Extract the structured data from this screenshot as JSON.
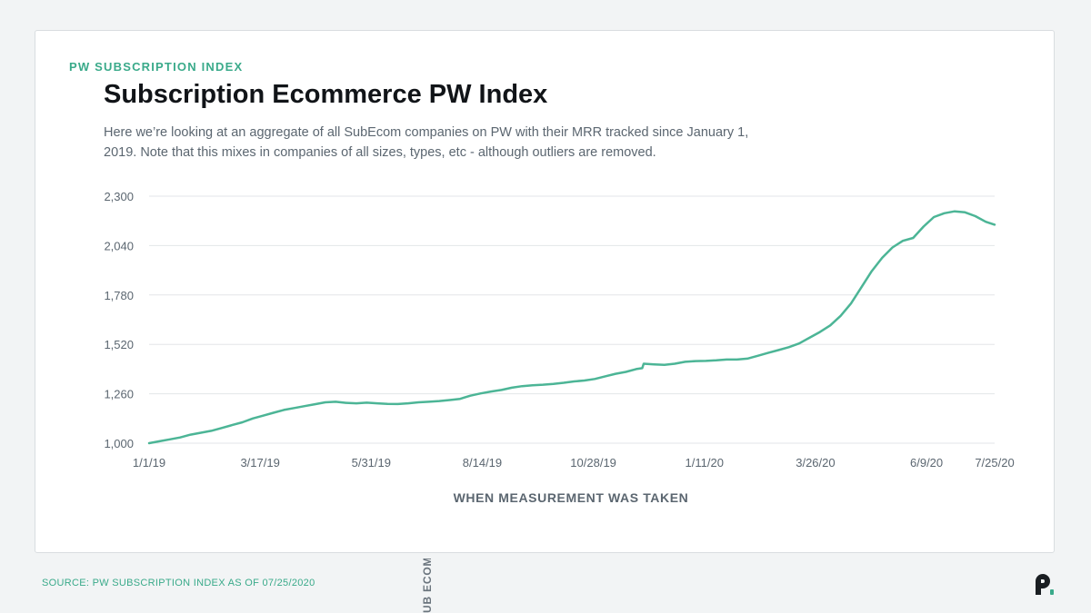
{
  "header": {
    "eyebrow": "PW SUBSCRIPTION INDEX",
    "title": "Subscription Ecommerce PW Index",
    "subtitle": "Here we’re looking at an aggregate of all SubEcom companies on PW with their MRR tracked since January 1, 2019. Note that this mixes in companies of all sizes, types, etc - although outliers are removed."
  },
  "footer": {
    "source": "SOURCE: PW SUBSCRIPTION INDEX AS OF 07/25/2020",
    "side_tag": "UB ECOM",
    "logo_icon": "pw-logo-icon"
  },
  "colors": {
    "line": "#4cb596",
    "accent": "#3aaa8a",
    "grid": "#e3e6e8",
    "text": "#5b6670"
  },
  "chart_data": {
    "type": "line",
    "title": "",
    "xlabel": "WHEN MEASUREMENT WAS TAKEN",
    "ylabel": "",
    "ylim": [
      1000,
      2300
    ],
    "y_ticks": [
      1000,
      1260,
      1520,
      1780,
      2040,
      2300
    ],
    "y_tick_labels": [
      "1,000",
      "1,260",
      "1,520",
      "1,780",
      "2,040",
      "2,300"
    ],
    "x_range": [
      "2019-01-01",
      "2020-07-25"
    ],
    "x_ticks": [
      "2019-01-01",
      "2019-03-17",
      "2019-05-31",
      "2019-08-14",
      "2019-10-28",
      "2020-01-11",
      "2020-03-26",
      "2020-06-09",
      "2020-07-25"
    ],
    "x_tick_labels": [
      "1/1/19",
      "3/17/19",
      "5/31/19",
      "8/14/19",
      "10/28/19",
      "1/11/20",
      "3/26/20",
      "6/9/20",
      "7/25/20"
    ],
    "grid": "horizontal",
    "legend": "none",
    "series": [
      {
        "points": [
          [
            "2019-01-01",
            1000
          ],
          [
            "2019-01-08",
            1010
          ],
          [
            "2019-01-15",
            1020
          ],
          [
            "2019-01-22",
            1030
          ],
          [
            "2019-01-29",
            1045
          ],
          [
            "2019-02-05",
            1055
          ],
          [
            "2019-02-12",
            1065
          ],
          [
            "2019-02-19",
            1080
          ],
          [
            "2019-02-26",
            1095
          ],
          [
            "2019-03-05",
            1110
          ],
          [
            "2019-03-12",
            1130
          ],
          [
            "2019-03-19",
            1145
          ],
          [
            "2019-03-26",
            1160
          ],
          [
            "2019-04-02",
            1175
          ],
          [
            "2019-04-09",
            1185
          ],
          [
            "2019-04-16",
            1195
          ],
          [
            "2019-04-23",
            1205
          ],
          [
            "2019-04-30",
            1215
          ],
          [
            "2019-05-07",
            1218
          ],
          [
            "2019-05-14",
            1212
          ],
          [
            "2019-05-21",
            1210
          ],
          [
            "2019-05-28",
            1213
          ],
          [
            "2019-06-04",
            1210
          ],
          [
            "2019-06-11",
            1207
          ],
          [
            "2019-06-18",
            1206
          ],
          [
            "2019-06-25",
            1210
          ],
          [
            "2019-07-02",
            1215
          ],
          [
            "2019-07-09",
            1218
          ],
          [
            "2019-07-16",
            1222
          ],
          [
            "2019-07-23",
            1227
          ],
          [
            "2019-07-30",
            1233
          ],
          [
            "2019-08-06",
            1250
          ],
          [
            "2019-08-13",
            1262
          ],
          [
            "2019-08-20",
            1272
          ],
          [
            "2019-08-27",
            1280
          ],
          [
            "2019-09-03",
            1292
          ],
          [
            "2019-09-10",
            1300
          ],
          [
            "2019-09-17",
            1305
          ],
          [
            "2019-09-24",
            1308
          ],
          [
            "2019-10-01",
            1312
          ],
          [
            "2019-10-08",
            1318
          ],
          [
            "2019-10-15",
            1325
          ],
          [
            "2019-10-22",
            1330
          ],
          [
            "2019-10-29",
            1338
          ],
          [
            "2019-11-05",
            1352
          ],
          [
            "2019-11-12",
            1365
          ],
          [
            "2019-11-19",
            1375
          ],
          [
            "2019-11-26",
            1390
          ],
          [
            "2019-11-30",
            1395
          ],
          [
            "2019-12-01",
            1418
          ],
          [
            "2019-12-08",
            1415
          ],
          [
            "2019-12-15",
            1412
          ],
          [
            "2019-12-22",
            1418
          ],
          [
            "2019-12-29",
            1428
          ],
          [
            "2020-01-05",
            1432
          ],
          [
            "2020-01-12",
            1433
          ],
          [
            "2020-01-19",
            1436
          ],
          [
            "2020-01-26",
            1440
          ],
          [
            "2020-02-02",
            1440
          ],
          [
            "2020-02-09",
            1445
          ],
          [
            "2020-02-16",
            1460
          ],
          [
            "2020-02-23",
            1475
          ],
          [
            "2020-03-01",
            1490
          ],
          [
            "2020-03-08",
            1505
          ],
          [
            "2020-03-15",
            1525
          ],
          [
            "2020-03-22",
            1555
          ],
          [
            "2020-03-29",
            1585
          ],
          [
            "2020-04-05",
            1620
          ],
          [
            "2020-04-12",
            1670
          ],
          [
            "2020-04-19",
            1735
          ],
          [
            "2020-04-26",
            1820
          ],
          [
            "2020-05-03",
            1905
          ],
          [
            "2020-05-10",
            1975
          ],
          [
            "2020-05-17",
            2030
          ],
          [
            "2020-05-24",
            2065
          ],
          [
            "2020-05-31",
            2080
          ],
          [
            "2020-06-07",
            2140
          ],
          [
            "2020-06-14",
            2190
          ],
          [
            "2020-06-21",
            2210
          ],
          [
            "2020-06-28",
            2220
          ],
          [
            "2020-07-05",
            2215
          ],
          [
            "2020-07-12",
            2195
          ],
          [
            "2020-07-19",
            2165
          ],
          [
            "2020-07-25",
            2150
          ]
        ]
      }
    ]
  }
}
